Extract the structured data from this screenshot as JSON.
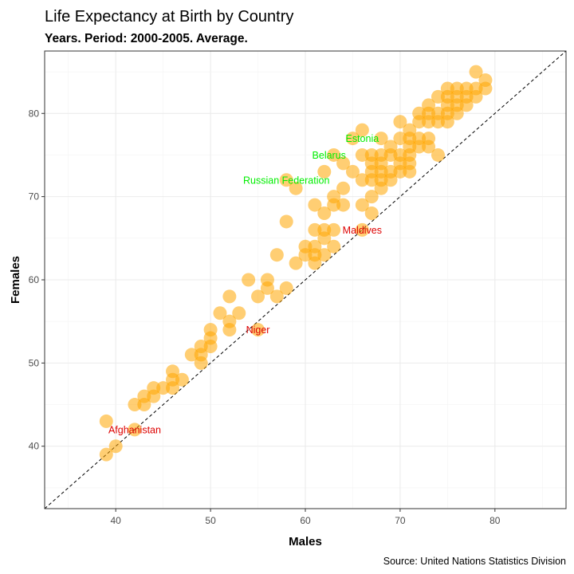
{
  "chart_data": {
    "type": "scatter",
    "title": "Life Expectancy at Birth by Country",
    "subtitle": "Years. Period: 2000-2005. Average.",
    "xlabel": "Males",
    "ylabel": "Females",
    "caption": "Source: United Nations Statistics Division",
    "xlim": [
      32.5,
      87.5
    ],
    "ylim": [
      32.5,
      87.5
    ],
    "x_ticks": [
      "40",
      "50",
      "60",
      "70",
      "80"
    ],
    "y_ticks": [
      "40",
      "50",
      "60",
      "70",
      "80"
    ],
    "grid": true,
    "reference_line": "y = x",
    "point_color": "#FFA500",
    "highlight_above_color": "#00EE00",
    "highlight_below_color": "#DD0000",
    "annotations": [
      {
        "label": "Estonia",
        "x": 66,
        "y": 77,
        "group": "above"
      },
      {
        "label": "Belarus",
        "x": 62.5,
        "y": 75,
        "group": "above"
      },
      {
        "label": "Russian Federation",
        "x": 58,
        "y": 72,
        "group": "above"
      },
      {
        "label": "Maldives",
        "x": 66,
        "y": 66,
        "group": "below"
      },
      {
        "label": "Niger",
        "x": 55,
        "y": 54,
        "group": "below"
      },
      {
        "label": "Afghanistan",
        "x": 42,
        "y": 42,
        "group": "below"
      }
    ],
    "points": [
      [
        39,
        43
      ],
      [
        39,
        39
      ],
      [
        40,
        40
      ],
      [
        42,
        45
      ],
      [
        42,
        42
      ],
      [
        43,
        45
      ],
      [
        43,
        46
      ],
      [
        44,
        46
      ],
      [
        44,
        47
      ],
      [
        45,
        47
      ],
      [
        46,
        49
      ],
      [
        46,
        48
      ],
      [
        46,
        47
      ],
      [
        47,
        48
      ],
      [
        48,
        51
      ],
      [
        49,
        52
      ],
      [
        49,
        50
      ],
      [
        49,
        51
      ],
      [
        50,
        54
      ],
      [
        50,
        52
      ],
      [
        50,
        53
      ],
      [
        51,
        56
      ],
      [
        52,
        58
      ],
      [
        52,
        55
      ],
      [
        52,
        54
      ],
      [
        53,
        56
      ],
      [
        54,
        60
      ],
      [
        55,
        54
      ],
      [
        55,
        58
      ],
      [
        56,
        60
      ],
      [
        56,
        59
      ],
      [
        57,
        58
      ],
      [
        57,
        63
      ],
      [
        58,
        59
      ],
      [
        58,
        67
      ],
      [
        58,
        72
      ],
      [
        59,
        71
      ],
      [
        59,
        62
      ],
      [
        60,
        64
      ],
      [
        60,
        63
      ],
      [
        61,
        62
      ],
      [
        61,
        63
      ],
      [
        61,
        64
      ],
      [
        61,
        66
      ],
      [
        61,
        69
      ],
      [
        62,
        68
      ],
      [
        62,
        66
      ],
      [
        62,
        63
      ],
      [
        62,
        65
      ],
      [
        62,
        73
      ],
      [
        63,
        64
      ],
      [
        63,
        66
      ],
      [
        63,
        69
      ],
      [
        63,
        70
      ],
      [
        63,
        75
      ],
      [
        64,
        69
      ],
      [
        64,
        71
      ],
      [
        64,
        74
      ],
      [
        65,
        73
      ],
      [
        65,
        77
      ],
      [
        66,
        66
      ],
      [
        66,
        69
      ],
      [
        66,
        72
      ],
      [
        66,
        75
      ],
      [
        66,
        78
      ],
      [
        67,
        68
      ],
      [
        67,
        70
      ],
      [
        67,
        72
      ],
      [
        67,
        73
      ],
      [
        67,
        74
      ],
      [
        67,
        75
      ],
      [
        68,
        71
      ],
      [
        68,
        72
      ],
      [
        68,
        73
      ],
      [
        68,
        74
      ],
      [
        68,
        75
      ],
      [
        68,
        77
      ],
      [
        69,
        72
      ],
      [
        69,
        73
      ],
      [
        69,
        75
      ],
      [
        69,
        76
      ],
      [
        70,
        73
      ],
      [
        70,
        74
      ],
      [
        70,
        75
      ],
      [
        70,
        77
      ],
      [
        70,
        79
      ],
      [
        71,
        73
      ],
      [
        71,
        74
      ],
      [
        71,
        75
      ],
      [
        71,
        76
      ],
      [
        71,
        77
      ],
      [
        71,
        78
      ],
      [
        72,
        76
      ],
      [
        72,
        77
      ],
      [
        72,
        79
      ],
      [
        72,
        80
      ],
      [
        73,
        76
      ],
      [
        73,
        77
      ],
      [
        73,
        79
      ],
      [
        73,
        80
      ],
      [
        73,
        81
      ],
      [
        74,
        75
      ],
      [
        74,
        79
      ],
      [
        74,
        80
      ],
      [
        74,
        82
      ],
      [
        75,
        79
      ],
      [
        75,
        80
      ],
      [
        75,
        81
      ],
      [
        75,
        82
      ],
      [
        75,
        83
      ],
      [
        76,
        80
      ],
      [
        76,
        81
      ],
      [
        76,
        82
      ],
      [
        76,
        83
      ],
      [
        77,
        81
      ],
      [
        77,
        82
      ],
      [
        77,
        83
      ],
      [
        78,
        82
      ],
      [
        78,
        83
      ],
      [
        78,
        85
      ],
      [
        79,
        83
      ],
      [
        79,
        84
      ]
    ]
  }
}
